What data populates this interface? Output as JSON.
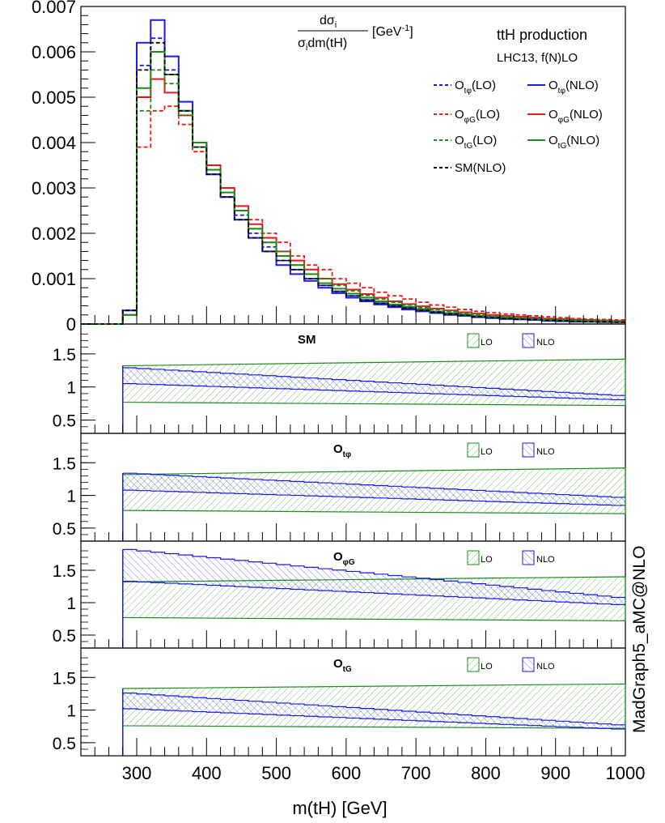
{
  "chart_data": {
    "type": "line",
    "top_panel": {
      "ylabel_num": "dσ",
      "ylabel_num_sub": "i",
      "ylabel_den": "σ",
      "ylabel_den_sub": "i",
      "ylabel_den_rest": "dm(tH)",
      "ylabel_unit": "[GeV",
      "ylabel_unit_exp": "-1",
      "ylabel_unit_close": "]",
      "title": "ttH production",
      "subtitle": "LHC13, f(N)LO",
      "ylim": [
        0,
        0.007
      ],
      "yticks": [
        "0",
        "0.001",
        "0.002",
        "0.003",
        "0.004",
        "0.005",
        "0.006",
        "0.007"
      ],
      "legend": [
        {
          "base": "O",
          "sub": "tφ",
          "tail": "(LO)",
          "color": "#1a1ae6",
          "style": "dashed"
        },
        {
          "base": "O",
          "sub": "tφ",
          "tail": "(NLO)",
          "color": "#1a1ae6",
          "style": "solid"
        },
        {
          "base": "O",
          "sub": "φG",
          "tail": "(LO)",
          "color": "#e61a1a",
          "style": "dashed"
        },
        {
          "base": "O",
          "sub": "φG",
          "tail": "(NLO)",
          "color": "#e61a1a",
          "style": "solid"
        },
        {
          "base": "O",
          "sub": "tG",
          "tail": "(LO)",
          "color": "#1a8c1a",
          "style": "dashed"
        },
        {
          "base": "O",
          "sub": "tG",
          "tail": "(NLO)",
          "color": "#1a8c1a",
          "style": "solid"
        },
        {
          "base": "SM(NLO)",
          "sub": "",
          "tail": "",
          "color": "#000000",
          "style": "dashed"
        }
      ],
      "series_bins_x": [
        260,
        280,
        300,
        320,
        340,
        360,
        380,
        400,
        420,
        440,
        460,
        480,
        500,
        520,
        540,
        560,
        580,
        600,
        620,
        640,
        660,
        680,
        700,
        720,
        740,
        760,
        780,
        800,
        820,
        840,
        860,
        880,
        900,
        920,
        940,
        960,
        980
      ],
      "series": [
        {
          "name": "Otphi(NLO)",
          "color": "#1a1ae6",
          "style": "solid",
          "values": [
            0,
            0.0003,
            0.0062,
            0.0067,
            0.0059,
            0.0049,
            0.004,
            0.0033,
            0.0028,
            0.0023,
            0.0019,
            0.0016,
            0.0013,
            0.0011,
            0.00095,
            0.0008,
            0.00068,
            0.00058,
            0.0005,
            0.00043,
            0.00037,
            0.00032,
            0.00028,
            0.00024,
            0.0002,
            0.00018,
            0.00015,
            0.00013,
            0.00011,
            0.0001,
            9e-05,
            7e-05,
            6e-05,
            5e-05,
            5e-05,
            4e-05,
            4e-05
          ]
        },
        {
          "name": "Otphi(LO)",
          "color": "#1a1ae6",
          "style": "dashed",
          "values": [
            0,
            0.0003,
            0.0057,
            0.0063,
            0.0056,
            0.0047,
            0.0039,
            0.0033,
            0.0028,
            0.0024,
            0.002,
            0.0017,
            0.0014,
            0.0012,
            0.001,
            0.00085,
            0.00072,
            0.00062,
            0.00053,
            0.00046,
            0.0004,
            0.00035,
            0.0003,
            0.00026,
            0.00022,
            0.00019,
            0.00016,
            0.00014,
            0.00012,
            0.00011,
            0.0001,
            8e-05,
            7e-05,
            6e-05,
            5e-05,
            5e-05,
            4e-05
          ]
        },
        {
          "name": "OphiG(NLO)",
          "color": "#e61a1a",
          "style": "solid",
          "values": [
            0,
            0.0002,
            0.005,
            0.0054,
            0.0051,
            0.0046,
            0.004,
            0.0035,
            0.003,
            0.0026,
            0.0022,
            0.0019,
            0.0016,
            0.0014,
            0.0012,
            0.001,
            0.00088,
            0.00076,
            0.00066,
            0.00058,
            0.0005,
            0.00044,
            0.00039,
            0.00034,
            0.0003,
            0.00026,
            0.00023,
            0.0002,
            0.00018,
            0.00016,
            0.00014,
            0.00012,
            0.00011,
            0.0001,
            9e-05,
            8e-05,
            7e-05
          ]
        },
        {
          "name": "OphiG(LO)",
          "color": "#e61a1a",
          "style": "dashed",
          "values": [
            0,
            0.0002,
            0.0039,
            0.0047,
            0.0048,
            0.0044,
            0.0038,
            0.0034,
            0.003,
            0.0026,
            0.0023,
            0.002,
            0.0018,
            0.0015,
            0.0013,
            0.0012,
            0.001,
            0.0009,
            0.0008,
            0.0007,
            0.00062,
            0.00055,
            0.00048,
            0.00042,
            0.00037,
            0.00032,
            0.00028,
            0.00025,
            0.00022,
            0.0002,
            0.00018,
            0.00016,
            0.00014,
            0.00012,
            0.00011,
            0.0001,
            9e-05
          ]
        },
        {
          "name": "OtG(NLO)",
          "color": "#1a8c1a",
          "style": "solid",
          "values": [
            0,
            0.0002,
            0.0052,
            0.006,
            0.0055,
            0.0047,
            0.004,
            0.0034,
            0.0029,
            0.0025,
            0.0021,
            0.0018,
            0.0015,
            0.0013,
            0.0011,
            0.0009,
            0.00078,
            0.00067,
            0.00058,
            0.0005,
            0.00043,
            0.00038,
            0.00033,
            0.00028,
            0.00024,
            0.00021,
            0.00018,
            0.00016,
            0.00014,
            0.00012,
            0.00011,
            9e-05,
            8e-05,
            7e-05,
            6e-05,
            5e-05,
            5e-05
          ]
        },
        {
          "name": "OtG(LO)",
          "color": "#1a8c1a",
          "style": "dashed",
          "values": [
            0,
            0.0002,
            0.0047,
            0.0056,
            0.0053,
            0.0046,
            0.0039,
            0.0034,
            0.0029,
            0.0025,
            0.0021,
            0.0018,
            0.0016,
            0.0013,
            0.0011,
            0.001,
            0.00085,
            0.00073,
            0.00063,
            0.00055,
            0.00048,
            0.00042,
            0.00036,
            0.00032,
            0.00028,
            0.00024,
            0.00021,
            0.00018,
            0.00016,
            0.00014,
            0.00012,
            0.00011,
            0.0001,
            9e-05,
            8e-05,
            7e-05,
            6e-05
          ]
        },
        {
          "name": "SM(NLO)",
          "color": "#000000",
          "style": "dashed",
          "values": [
            0,
            0.0003,
            0.0056,
            0.0062,
            0.0055,
            0.0047,
            0.0039,
            0.0033,
            0.0028,
            0.0023,
            0.0019,
            0.0016,
            0.0014,
            0.0012,
            0.001,
            0.00085,
            0.00072,
            0.00062,
            0.00053,
            0.00046,
            0.0004,
            0.00035,
            0.0003,
            0.00026,
            0.00022,
            0.00019,
            0.00016,
            0.00014,
            0.00012,
            0.00011,
            0.0001,
            8e-05,
            7e-05,
            6e-05,
            5e-05,
            5e-05,
            4e-05
          ]
        }
      ]
    },
    "ratio_panels": [
      {
        "label_base": "SM",
        "label_sub": "",
        "lo_band": [
          [
            280,
            0.77,
            1.32
          ],
          [
            1000,
            0.72,
            1.42
          ]
        ],
        "nlo_band_start": [
          280,
          1.05,
          1.29
        ],
        "nlo_band_end": [
          1000,
          0.8,
          0.86
        ]
      },
      {
        "label_base": "O",
        "label_sub": "tφ",
        "lo_band": [
          [
            280,
            0.77,
            1.32
          ],
          [
            1000,
            0.72,
            1.42
          ]
        ],
        "nlo_band_start": [
          280,
          1.08,
          1.34
        ],
        "nlo_band_end": [
          1000,
          0.84,
          0.96
        ]
      },
      {
        "label_base": "O",
        "label_sub": "φG",
        "lo_band": [
          [
            280,
            0.77,
            1.32
          ],
          [
            1000,
            0.72,
            1.4
          ]
        ],
        "nlo_band_start": [
          280,
          1.33,
          1.82
        ],
        "nlo_band_end": [
          1000,
          0.96,
          1.06
        ]
      },
      {
        "label_base": "O",
        "label_sub": "tG",
        "lo_band": [
          [
            280,
            0.76,
            1.33
          ],
          [
            1000,
            0.72,
            1.4
          ]
        ],
        "nlo_band_start": [
          280,
          1.02,
          1.26
        ],
        "nlo_band_end": [
          1000,
          0.7,
          0.76
        ]
      }
    ],
    "ratio_legend": {
      "lo": "LO",
      "nlo": "NLO",
      "lo_color": "#1a8c1a",
      "nlo_color": "#1a1ae6"
    },
    "ratio_yticks": [
      "0.5",
      "1",
      "1.5"
    ],
    "ratio_ylim": [
      0.3,
      1.95
    ],
    "xlim": [
      220,
      1000
    ],
    "xticks": [
      "300",
      "400",
      "500",
      "600",
      "700",
      "800",
      "900",
      "1000"
    ],
    "xlabel": "m(tH) [GeV]",
    "watermark": "MadGraph5_aMC@NLO"
  }
}
